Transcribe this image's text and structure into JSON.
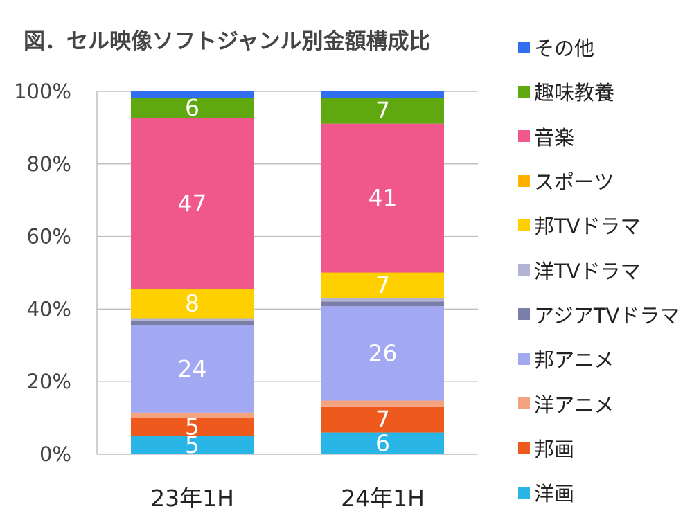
{
  "title": "図．セル映像ソフトジャンル別金額構成比",
  "chart_data": {
    "type": "bar",
    "stacked": true,
    "percent": true,
    "categories": [
      "23年1H",
      "24年1H"
    ],
    "ylim": [
      0,
      100
    ],
    "yticks": [
      "0%",
      "20%",
      "40%",
      "60%",
      "80%",
      "100%"
    ],
    "ytick_values": [
      0,
      20,
      40,
      60,
      80,
      100
    ],
    "grid": true,
    "legend_position": "right",
    "series": [
      {
        "name": "洋画",
        "color": "#29B6E6",
        "values": [
          5,
          6
        ],
        "labels": [
          "5",
          "6"
        ]
      },
      {
        "name": "邦画",
        "color": "#EE5A1E",
        "values": [
          5,
          7
        ],
        "labels": [
          "5",
          "7"
        ]
      },
      {
        "name": "洋アニメ",
        "color": "#F3A37E",
        "values": [
          1.5,
          1.8
        ],
        "labels": [
          "",
          ""
        ]
      },
      {
        "name": "邦アニメ",
        "color": "#A2A9F2",
        "values": [
          24,
          26
        ],
        "labels": [
          "24",
          "26"
        ]
      },
      {
        "name": "アジアTVドラマ",
        "color": "#7A7FA8",
        "values": [
          1.2,
          1.3
        ],
        "labels": [
          "",
          ""
        ]
      },
      {
        "name": "洋TVドラマ",
        "color": "#B3B4D3",
        "values": [
          0.8,
          0.9
        ],
        "labels": [
          "",
          ""
        ]
      },
      {
        "name": "邦TVドラマ",
        "color": "#FFD000",
        "values": [
          8,
          7
        ],
        "labels": [
          "8",
          "7"
        ]
      },
      {
        "name": "スポーツ",
        "color": "#FFB000",
        "values": [
          0.1,
          0.1
        ],
        "labels": [
          "",
          ""
        ]
      },
      {
        "name": "音楽",
        "color": "#F0588C",
        "values": [
          47,
          41
        ],
        "labels": [
          "47",
          "41"
        ]
      },
      {
        "name": "趣味教養",
        "color": "#5FA810",
        "values": [
          5.6,
          7.1
        ],
        "labels": [
          "6",
          "7"
        ]
      },
      {
        "name": "その他",
        "color": "#2F6FF0",
        "values": [
          1.8,
          1.8
        ],
        "labels": [
          "",
          ""
        ]
      }
    ]
  }
}
